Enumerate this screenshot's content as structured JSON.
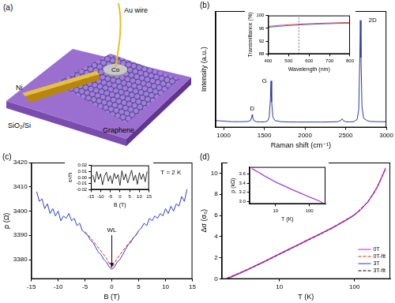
{
  "diagram": {
    "panel": "(a)",
    "labels": {
      "wire": "Au wire",
      "contact_1": "Ni",
      "contact_2": "Co",
      "sheet": "Graphene",
      "substrate": "SiO₂/Si"
    }
  },
  "chart_data": [
    {
      "type": "line",
      "panel": "(b)",
      "x_label": "Raman shift (cm⁻¹)",
      "y_label": "Intensity (a.u.)",
      "xlim": [
        900,
        3000
      ],
      "xticks": [
        1000,
        1500,
        2000,
        2500,
        3000
      ],
      "ylim": [
        0,
        100
      ],
      "tick_labels": "x",
      "grid": false,
      "series": [
        {
          "color": "#2b3a9e",
          "x": [
            900,
            1000,
            1100,
            1200,
            1300,
            1330,
            1345,
            1350,
            1355,
            1370,
            1400,
            1450,
            1500,
            1540,
            1560,
            1575,
            1582,
            1590,
            1605,
            1630,
            1700,
            1800,
            1900,
            2000,
            2100,
            2200,
            2300,
            2400,
            2440,
            2455,
            2470,
            2500,
            2550,
            2600,
            2640,
            2660,
            2672,
            2680,
            2688,
            2700,
            2720,
            2760,
            2800,
            2900,
            3000
          ],
          "values": [
            6,
            5.5,
            5,
            5,
            5.2,
            6,
            9,
            11,
            9,
            6,
            5,
            4.8,
            4.8,
            5.5,
            9,
            25,
            40,
            22,
            9,
            6,
            5,
            4.8,
            4.7,
            4.7,
            4.7,
            4.7,
            4.8,
            5,
            6,
            7.5,
            6,
            5,
            4.8,
            5,
            7,
            15,
            55,
            92,
            60,
            18,
            8,
            6,
            5.2,
            5,
            5
          ]
        }
      ],
      "annotations": [
        {
          "text": "D",
          "x": 1350,
          "y": 16
        },
        {
          "text": "G",
          "x": 1500,
          "y": 40
        },
        {
          "text": "2D",
          "x": 2830,
          "y": 92
        }
      ]
    },
    {
      "type": "line",
      "x_label": "Wavelength (nm)",
      "y_label": "Transmittance (%)",
      "xlim": [
        400,
        800
      ],
      "xticks": [
        400,
        500,
        600,
        700,
        800
      ],
      "ylim": [
        88,
        100
      ],
      "yticks": [
        88,
        92,
        96,
        100
      ],
      "grid": false,
      "reference_x": 550,
      "series": [
        {
          "color": "#e0202a",
          "x": [
            400,
            450,
            500,
            550,
            600,
            650,
            700,
            750,
            800
          ],
          "values": [
            96.6,
            96.9,
            97.1,
            97.3,
            97.45,
            97.55,
            97.65,
            97.75,
            97.8
          ]
        },
        {
          "color": "#2040d0",
          "x": [
            400,
            450,
            500,
            550,
            600,
            650,
            700,
            750,
            800
          ],
          "values": [
            96.3,
            96.6,
            96.85,
            97.05,
            97.2,
            97.35,
            97.45,
            97.55,
            97.6
          ]
        }
      ]
    },
    {
      "type": "line",
      "panel": "(c)",
      "x_label": "B (T)",
      "y_label": "ρ (Ω)",
      "xlim": [
        -15,
        15
      ],
      "xticks": [
        -15,
        -10,
        -5,
        0,
        5,
        10,
        15
      ],
      "ylim": [
        3372,
        3420
      ],
      "yticks": [
        3380,
        3390,
        3400,
        3410,
        3420
      ],
      "grid": false,
      "series": [
        {
          "color": "#2a3ec0",
          "line_style": "solid",
          "x": [
            -14,
            -13.5,
            -13,
            -12.5,
            -12,
            -11.5,
            -11,
            -10.5,
            -10,
            -9.5,
            -9,
            -8.5,
            -8,
            -7.5,
            -7,
            -6.5,
            -6,
            -5.5,
            -5,
            -4.5,
            -4,
            -3.5,
            -3,
            -2.5,
            -2,
            -1.5,
            -1,
            -0.5,
            0,
            0.5,
            1,
            1.5,
            2,
            2.5,
            3,
            3.5,
            4,
            4.5,
            5,
            5.5,
            6,
            6.5,
            7,
            7.5,
            8,
            8.5,
            9,
            9.5,
            10,
            10.5,
            11,
            11.5,
            12,
            12.5,
            13,
            13.5,
            14
          ],
          "values": [
            3408,
            3404,
            3405,
            3401,
            3403,
            3399,
            3401,
            3398,
            3400,
            3396,
            3398,
            3397,
            3399,
            3396,
            3397,
            3394,
            3395,
            3392,
            3391,
            3390,
            3388,
            3387,
            3385,
            3383,
            3382,
            3380,
            3379,
            3377,
            3376,
            3377,
            3379,
            3380,
            3382,
            3384,
            3386,
            3387,
            3389,
            3390,
            3392,
            3393,
            3395,
            3394,
            3397,
            3396,
            3398,
            3397,
            3399,
            3398,
            3401,
            3399,
            3402,
            3400,
            3403,
            3402,
            3406,
            3404,
            3409
          ]
        },
        {
          "color": "#e0202a",
          "line_style": "dashed",
          "x": [
            -5,
            -4,
            -3,
            -2,
            -1,
            0,
            1,
            2,
            3,
            4,
            5
          ],
          "values": [
            3391.5,
            3389,
            3386.3,
            3383.5,
            3380.5,
            3376.5,
            3380.5,
            3383.5,
            3386.3,
            3389,
            3391.5
          ]
        }
      ],
      "annotations": [
        {
          "text": "T = 2 K",
          "x": 11,
          "y": 3416
        },
        {
          "text": "WL",
          "x": 0,
          "y": 3392,
          "arrow": true
        }
      ]
    },
    {
      "type": "line",
      "x_label": "B (T)",
      "y_label": "e²/h",
      "xlim": [
        -15,
        15
      ],
      "xticks": [
        -15,
        -10,
        -5,
        0,
        5,
        10,
        15
      ],
      "ylim": [
        -0.02,
        0.02
      ],
      "yticks": [
        -0.02,
        -0.01,
        {
          "value": 0,
          "label": "0.00"
        },
        0.01,
        0.02
      ],
      "grid": false,
      "series": [
        {
          "color": "#000000",
          "x": [
            -14,
            -13,
            -12,
            -11,
            -10,
            -9,
            -8,
            -7,
            -6,
            -5,
            -4,
            -3,
            -2,
            -1,
            0,
            1,
            2,
            3,
            4,
            5,
            6,
            7,
            8,
            9,
            10,
            11,
            12,
            13,
            14
          ],
          "values": [
            0.004,
            -0.008,
            0.01,
            -0.003,
            0.006,
            -0.012,
            0.002,
            0.009,
            -0.006,
            0.003,
            -0.01,
            0.007,
            -0.002,
            0.005,
            -0.013,
            0.011,
            -0.004,
            0.006,
            -0.009,
            0.002,
            0.012,
            -0.005,
            0.004,
            -0.011,
            0.008,
            -0.003,
            0.006,
            -0.007,
            0.01
          ]
        }
      ]
    },
    {
      "type": "line",
      "panel": "(d)",
      "x_label": "T (K)",
      "y_label": "Δσ (σ₀)",
      "log": "x",
      "xlim": [
        1.7,
        300
      ],
      "xticks": [
        10,
        100
      ],
      "ylim": [
        0,
        11
      ],
      "yticks": [
        0,
        2,
        4,
        6,
        8,
        10
      ],
      "grid": false,
      "legend": "lower right",
      "series": [
        {
          "name": "0T",
          "color": "#cc22cc",
          "line_style": "solid",
          "x": [
            2,
            2.5,
            3,
            4,
            5,
            6,
            8,
            10,
            13,
            16,
            20,
            25,
            30,
            40,
            50,
            60,
            80,
            100,
            120,
            150,
            180,
            200,
            230,
            260
          ],
          "values": [
            0.05,
            0.35,
            0.6,
            1.0,
            1.35,
            1.6,
            2.05,
            2.4,
            2.8,
            3.1,
            3.45,
            3.8,
            4.05,
            4.5,
            4.85,
            5.15,
            5.65,
            6.1,
            6.55,
            7.3,
            8.1,
            8.7,
            9.6,
            10.5
          ]
        },
        {
          "name": "0T-fit",
          "color": "#ee2222",
          "line_style": "dashed",
          "x": [
            2,
            3,
            5,
            10,
            20,
            50,
            100,
            150,
            200,
            260
          ],
          "values": [
            0.1,
            0.62,
            1.33,
            2.38,
            3.43,
            4.83,
            6.08,
            7.28,
            8.68,
            10.45
          ]
        },
        {
          "name": "3T",
          "color": "#2a3ab8",
          "line_style": "solid",
          "x": [
            2,
            2.5,
            3,
            4,
            5,
            6,
            8,
            10,
            13,
            16,
            20,
            25,
            30,
            40,
            50,
            60,
            80,
            100,
            120,
            150,
            180,
            200,
            230,
            260
          ],
          "values": [
            0.0,
            0.3,
            0.55,
            0.95,
            1.3,
            1.55,
            2.0,
            2.35,
            2.75,
            3.05,
            3.4,
            3.75,
            4.0,
            4.45,
            4.8,
            5.1,
            5.6,
            6.05,
            6.5,
            7.25,
            8.05,
            8.65,
            9.55,
            10.45
          ]
        },
        {
          "name": "3T-fit",
          "color": "#000000",
          "line_style": "dashed",
          "x": [
            2,
            3,
            5,
            10,
            20,
            50,
            100,
            150,
            200,
            260
          ],
          "values": [
            0.05,
            0.57,
            1.28,
            2.33,
            3.38,
            4.78,
            6.03,
            7.23,
            8.63,
            10.4
          ]
        }
      ]
    },
    {
      "type": "line",
      "x_label": "T (K)",
      "y_label": "ρ (kΩ)",
      "log": "x",
      "xlim": [
        1.7,
        300
      ],
      "xticks": [
        10,
        100
      ],
      "ylim": [
        2.95,
        3.75
      ],
      "yticks": [
        {
          "value": 3,
          "label": "3.0"
        },
        3.2,
        3.4,
        3.6
      ],
      "grid": false,
      "series": [
        {
          "color": "#cc22cc",
          "x": [
            2,
            3,
            5,
            8,
            10,
            20,
            30,
            50,
            80,
            100,
            150,
            200,
            250
          ],
          "values": [
            3.72,
            3.65,
            3.55,
            3.47,
            3.43,
            3.33,
            3.27,
            3.2,
            3.13,
            3.1,
            3.05,
            3.01,
            2.97
          ]
        },
        {
          "color": "#3030c0",
          "x": [
            2,
            3,
            5,
            8,
            10,
            20,
            30,
            50,
            80,
            100,
            150,
            200,
            250
          ],
          "values": [
            3.71,
            3.64,
            3.54,
            3.46,
            3.42,
            3.32,
            3.26,
            3.19,
            3.13,
            3.1,
            3.05,
            3.01,
            2.97
          ]
        }
      ]
    }
  ]
}
